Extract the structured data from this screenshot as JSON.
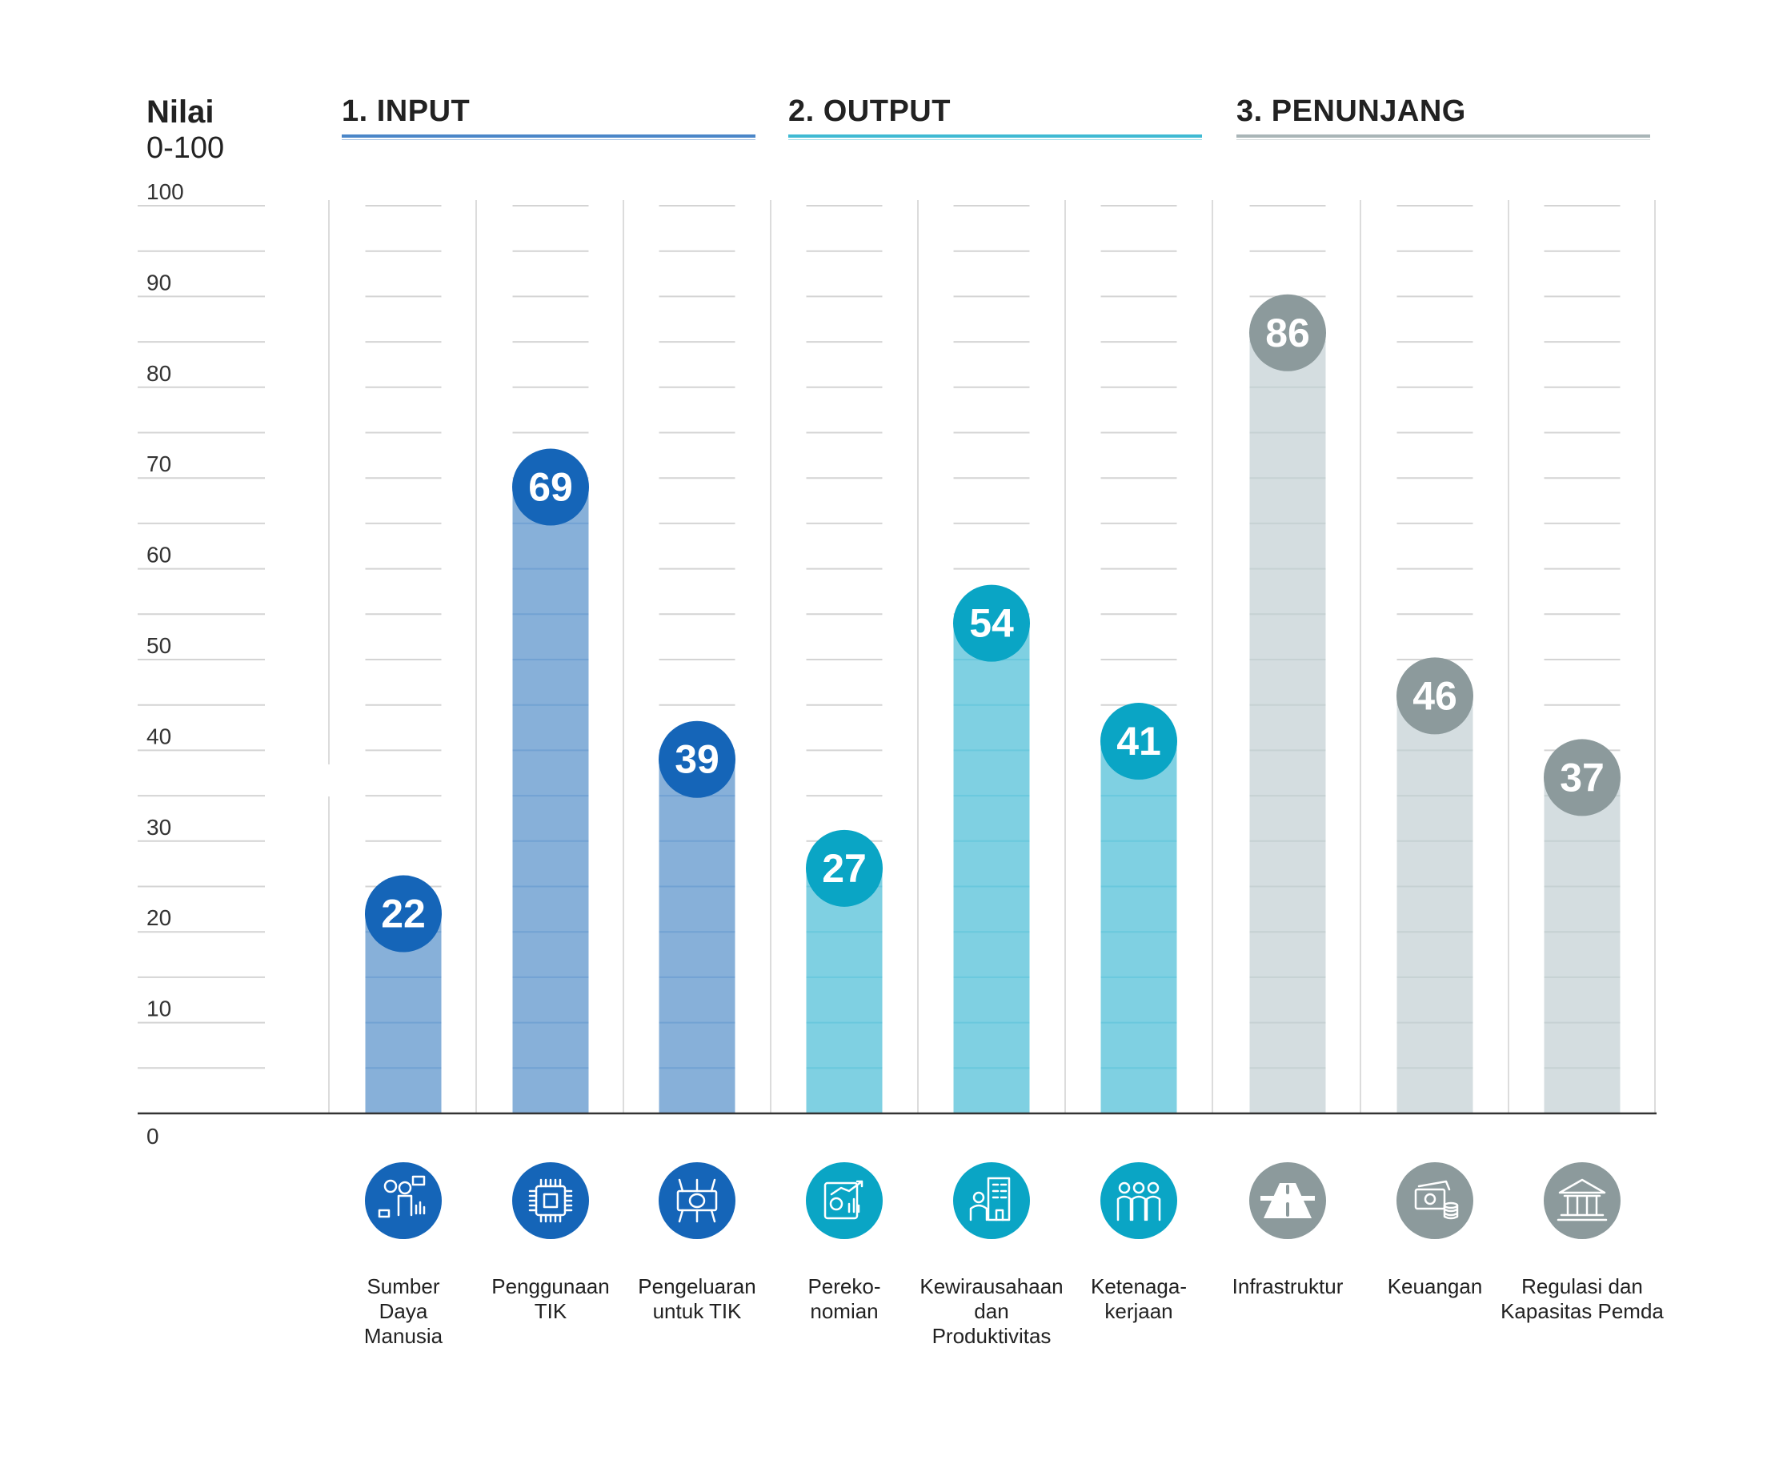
{
  "y_axis": {
    "title": "Nilai",
    "subtitle": "0-100"
  },
  "groups": [
    {
      "label": "1. INPUT",
      "color": "#1565b8",
      "bar_color": "#87b0d9",
      "line_color": "#4a86c8"
    },
    {
      "label": "2. OUTPUT",
      "color": "#0aa5c5",
      "bar_color": "#7fd0e2",
      "line_color": "#3fbad3"
    },
    {
      "label": "3. PENUNJANG",
      "color": "#8c9a9c",
      "bar_color": "#d4dde0",
      "line_color": "#a9b5b7"
    }
  ],
  "chart_data": {
    "type": "bar",
    "title": "",
    "xlabel": "",
    "ylabel": "Nilai 0-100",
    "ylim": [
      0,
      100
    ],
    "yticks": [
      0,
      10,
      20,
      30,
      40,
      50,
      60,
      70,
      80,
      90,
      100
    ],
    "grid": true,
    "categories": [
      {
        "name": "Sumber Daya Manusia",
        "label_lines": [
          "Sumber",
          "Daya",
          "Manusia"
        ],
        "group": 0,
        "icon": "people-analytics-icon"
      },
      {
        "name": "Penggunaan TIK",
        "label_lines": [
          "Penggunaan",
          "TIK"
        ],
        "group": 0,
        "icon": "chip-icon"
      },
      {
        "name": "Pengeluaran untuk TIK",
        "label_lines": [
          "Pengeluaran",
          "untuk TIK"
        ],
        "group": 0,
        "icon": "money-network-icon"
      },
      {
        "name": "Perekonomian",
        "label_lines": [
          "Pereko-",
          "nomian"
        ],
        "group": 1,
        "icon": "economy-chart-icon"
      },
      {
        "name": "Kewirausahaan dan Produktivitas",
        "label_lines": [
          "Kewirausahaan",
          "dan",
          "Produktivitas"
        ],
        "group": 1,
        "icon": "entrepreneur-building-icon"
      },
      {
        "name": "Ketenagakerjaan",
        "label_lines": [
          "Ketenaga-",
          "kerjaan"
        ],
        "group": 1,
        "icon": "workers-icon"
      },
      {
        "name": "Infrastruktur",
        "label_lines": [
          "Infrastruktur"
        ],
        "group": 2,
        "icon": "road-icon"
      },
      {
        "name": "Keuangan",
        "label_lines": [
          "Keuangan"
        ],
        "group": 2,
        "icon": "cash-coins-icon"
      },
      {
        "name": "Regulasi dan Kapasitas Pemda",
        "label_lines": [
          "Regulasi dan",
          "Kapasitas Pemda"
        ],
        "group": 2,
        "icon": "government-building-icon"
      }
    ],
    "values": [
      22,
      69,
      39,
      27,
      54,
      41,
      86,
      46,
      37
    ]
  }
}
